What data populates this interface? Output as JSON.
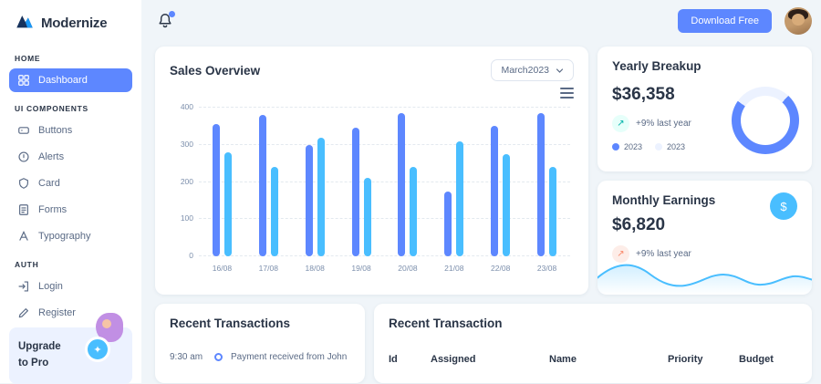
{
  "sidebar": {
    "logo_text": "Modernize",
    "sections": [
      {
        "label": "HOME",
        "items": [
          {
            "label": "Dashboard",
            "icon": "grid-icon",
            "active": true
          }
        ]
      },
      {
        "label": "UI COMPONENTS",
        "items": [
          {
            "label": "Buttons",
            "icon": "buttons-icon"
          },
          {
            "label": "Alerts",
            "icon": "alerts-icon"
          },
          {
            "label": "Card",
            "icon": "card-icon"
          },
          {
            "label": "Forms",
            "icon": "forms-icon"
          },
          {
            "label": "Typography",
            "icon": "typography-icon"
          }
        ]
      },
      {
        "label": "AUTH",
        "items": [
          {
            "label": "Login",
            "icon": "login-icon"
          },
          {
            "label": "Register",
            "icon": "register-icon"
          }
        ]
      }
    ],
    "upgrade": {
      "line1": "Upgrade",
      "line2": "to Pro"
    }
  },
  "header": {
    "download_button_label": "Download Free"
  },
  "icons": {
    "trend_up": "↗",
    "dollar": "$",
    "spark": "✦"
  },
  "sales_overview": {
    "title": "Sales Overview",
    "period_selector": "March2023"
  },
  "chart_data": [
    {
      "type": "bar",
      "title": "Sales Overview",
      "categories": [
        "16/08",
        "17/08",
        "18/08",
        "19/08",
        "20/08",
        "21/08",
        "22/08",
        "23/08"
      ],
      "series": [
        {
          "name": "2023",
          "color": "#5D87FF",
          "values": [
            355,
            380,
            300,
            345,
            385,
            175,
            350,
            385
          ]
        },
        {
          "name": "2023",
          "color": "#49BEFF",
          "values": [
            280,
            240,
            320,
            210,
            240,
            310,
            275,
            240
          ]
        }
      ],
      "ylim": [
        0,
        400
      ],
      "yticks": [
        0,
        100,
        200,
        300,
        400
      ],
      "grid": true,
      "legend_position": "none"
    },
    {
      "type": "pie",
      "title": "Yearly Breakup",
      "segments": [
        {
          "label": "2023",
          "value": 73,
          "color": "#5D87FF"
        },
        {
          "label": "2023",
          "value": 27,
          "color": "#ECF2FF"
        }
      ]
    },
    {
      "type": "area",
      "title": "Monthly Earnings",
      "color": "#49BEFF"
    }
  ],
  "yearly_breakup": {
    "title": "Yearly Breakup",
    "amount": "$36,358",
    "change_label": "+9% last year",
    "legend": [
      {
        "label": "2023",
        "color": "#5D87FF"
      },
      {
        "label": "2023",
        "color": "#ECF2FF"
      }
    ]
  },
  "monthly_earnings": {
    "title": "Monthly Earnings",
    "amount": "$6,820",
    "change_label": "+9% last year"
  },
  "recent_transactions": {
    "title": "Recent Transactions",
    "items": [
      {
        "time": "9:30 am",
        "text": "Payment received from John"
      }
    ]
  },
  "recent_transaction_table": {
    "title": "Recent Transaction",
    "headers": [
      "Id",
      "Assigned",
      "Name",
      "Priority",
      "Budget"
    ]
  },
  "colors": {
    "primary": "#5D87FF",
    "secondary": "#49BEFF",
    "success": "#13DEB9",
    "warning": "#FA896B",
    "background": "#F0F5F9"
  }
}
